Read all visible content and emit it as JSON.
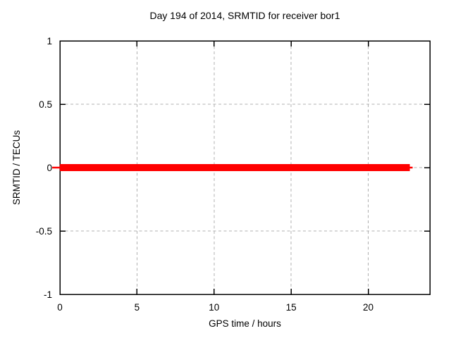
{
  "chart_data": {
    "type": "line",
    "title": "Day 194 of 2014, SRMTID for receiver bor1",
    "xlabel": "GPS time / hours",
    "ylabel": "SRMTID / TECUs",
    "xlim": [
      0,
      24
    ],
    "ylim": [
      -1,
      1
    ],
    "xticks": [
      0,
      5,
      10,
      15,
      20
    ],
    "yticks": [
      -1,
      -0.5,
      0,
      0.5,
      1
    ],
    "grid": true,
    "legend_position": "none",
    "series": [
      {
        "name": "SRMTID",
        "color": "#ff0000",
        "x": [
          0,
          22.7
        ],
        "y": [
          0,
          0
        ]
      }
    ],
    "colors": {
      "background": "#ffffff",
      "border": "#000000",
      "grid": "#b0b0b0",
      "text": "#000000",
      "series_red": "#ff0000"
    }
  }
}
